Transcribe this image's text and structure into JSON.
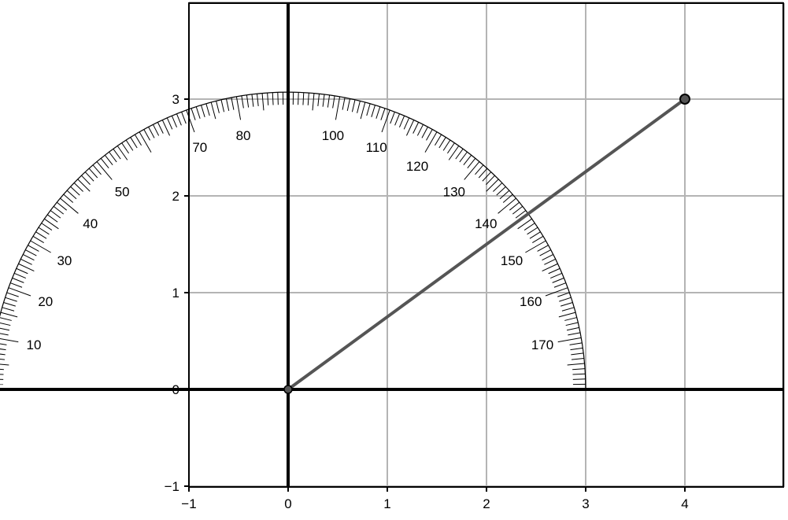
{
  "colors": {
    "background": "#ffffff",
    "grid": "#b4b4b4",
    "axis": "#000000",
    "segment": "#555555",
    "protractor": "#000000"
  },
  "chart_data": {
    "type": "diagram",
    "xlim": [
      -1,
      5
    ],
    "ylim": [
      -1,
      4
    ],
    "grid": true,
    "x_ticks": [
      -1,
      0,
      1,
      2,
      3,
      4
    ],
    "x_tick_labels": [
      "−1",
      "0",
      "1",
      "2",
      "3",
      "4"
    ],
    "y_ticks": [
      -1,
      0,
      1,
      2,
      3
    ],
    "y_tick_labels": [
      "−1",
      "0",
      "1",
      "2",
      "3"
    ],
    "protractor": {
      "center": [
        0,
        0
      ],
      "radius": 3,
      "angle_labels": [
        "10",
        "20",
        "30",
        "40",
        "50",
        "70",
        "80",
        "100",
        "110",
        "120",
        "130",
        "140",
        "150",
        "160",
        "170"
      ],
      "angle_label_values": [
        10,
        20,
        30,
        40,
        50,
        70,
        80,
        100,
        110,
        120,
        130,
        140,
        150,
        160,
        170
      ]
    },
    "segment": {
      "start": [
        0,
        0
      ],
      "end": [
        4,
        3
      ]
    }
  }
}
